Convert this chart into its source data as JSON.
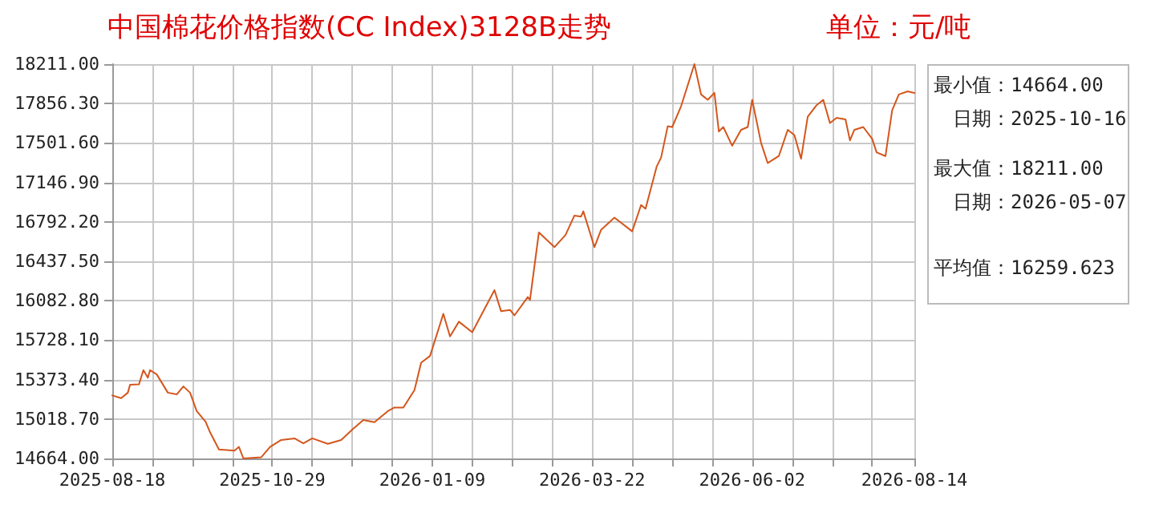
{
  "chart_data": {
    "type": "line",
    "title": "中国棉花价格指数(CC Index)3128B走势",
    "subtitle": "单位：元/吨",
    "annotations": [
      "最小值：14664.00",
      "日期：2025-10-16",
      "最大值：18211.00",
      "日期：2026-05-07",
      "平均值：16259.623"
    ],
    "x": [
      "2025-08-18",
      "2025-08-22",
      "2025-08-25",
      "2025-08-26",
      "2025-08-30",
      "2025-09-01",
      "2025-09-03",
      "2025-09-04",
      "2025-09-07",
      "2025-09-12",
      "2025-09-16",
      "2025-09-19",
      "2025-09-22",
      "2025-09-25",
      "2025-09-29",
      "2025-10-01",
      "2025-10-05",
      "2025-10-12",
      "2025-10-14",
      "2025-10-16",
      "2025-10-24",
      "2025-10-28",
      "2025-11-02",
      "2025-11-08",
      "2025-11-12",
      "2025-11-16",
      "2025-11-23",
      "2025-11-29",
      "2025-12-04",
      "2025-12-09",
      "2025-12-14",
      "2025-12-20",
      "2025-12-23",
      "2025-12-27",
      "2026-01-01",
      "2026-01-04",
      "2026-01-08",
      "2026-01-14",
      "2026-01-17",
      "2026-01-21",
      "2026-01-27",
      "2026-02-06",
      "2026-02-09",
      "2026-02-13",
      "2026-02-15",
      "2026-02-21",
      "2026-02-22",
      "2026-02-26",
      "2026-03-05",
      "2026-03-10",
      "2026-03-14",
      "2026-03-17",
      "2026-03-18",
      "2026-03-23",
      "2026-03-26",
      "2026-04-01",
      "2026-04-09",
      "2026-04-13",
      "2026-04-15",
      "2026-04-20",
      "2026-04-22",
      "2026-04-25",
      "2026-04-27",
      "2026-05-01",
      "2026-05-07",
      "2026-05-10",
      "2026-05-13",
      "2026-05-16",
      "2026-05-18",
      "2026-05-20",
      "2026-05-24",
      "2026-05-28",
      "2026-05-31",
      "2026-06-02",
      "2026-06-06",
      "2026-06-09",
      "2026-06-14",
      "2026-06-18",
      "2026-06-21",
      "2026-06-24",
      "2026-06-27",
      "2026-07-01",
      "2026-07-04",
      "2026-07-07",
      "2026-07-10",
      "2026-07-14",
      "2026-07-16",
      "2026-07-18",
      "2026-07-22",
      "2026-07-26",
      "2026-07-28",
      "2026-08-01",
      "2026-08-04",
      "2026-08-07",
      "2026-08-11",
      "2026-08-14"
    ],
    "series": [
      {
        "color": "#d4561c",
        "values": [
          15231,
          15207,
          15256,
          15327,
          15330,
          15459,
          15390,
          15459,
          15420,
          15256,
          15240,
          15312,
          15256,
          15090,
          14995,
          14900,
          14745,
          14735,
          14768,
          14664,
          14674,
          14768,
          14830,
          14845,
          14800,
          14845,
          14796,
          14830,
          14924,
          15010,
          14990,
          15090,
          15122,
          15122,
          15278,
          15525,
          15586,
          15965,
          15761,
          15894,
          15799,
          16178,
          15988,
          16000,
          15951,
          16116,
          16090,
          16697,
          16565,
          16675,
          16849,
          16840,
          16887,
          16565,
          16721,
          16830,
          16707,
          16944,
          16910,
          17289,
          17370,
          17653,
          17645,
          17832,
          18211,
          17938,
          17890,
          17952,
          17605,
          17645,
          17477,
          17620,
          17645,
          17890,
          17502,
          17321,
          17384,
          17620,
          17573,
          17360,
          17738,
          17842,
          17890,
          17681,
          17728,
          17714,
          17525,
          17620,
          17645,
          17540,
          17417,
          17384,
          17795,
          17938,
          17966,
          17952
        ]
      }
    ],
    "xlim": [
      "2025-08-18",
      "2026-08-14"
    ],
    "xticks": [
      "2025-08-18",
      {
        "value": "2025-09-05",
        "label": null
      },
      {
        "value": "2025-09-23",
        "label": null
      },
      {
        "value": "2025-10-11",
        "label": null
      },
      "2025-10-29",
      {
        "value": "2025-11-16",
        "label": null
      },
      {
        "value": "2025-12-04",
        "label": null
      },
      {
        "value": "2025-12-22",
        "label": null
      },
      "2026-01-09",
      {
        "value": "2026-01-27",
        "label": null
      },
      {
        "value": "2026-02-14",
        "label": null
      },
      {
        "value": "2026-03-04",
        "label": null
      },
      "2026-03-22",
      {
        "value": "2026-04-09",
        "label": null
      },
      {
        "value": "2026-04-27",
        "label": null
      },
      {
        "value": "2026-05-15",
        "label": null
      },
      "2026-06-02",
      {
        "value": "2026-06-20",
        "label": null
      },
      {
        "value": "2026-07-08",
        "label": null
      },
      {
        "value": "2026-07-26",
        "label": null
      },
      "2026-08-14"
    ],
    "ylim": [
      14664,
      18211
    ],
    "yticks": [
      {
        "value": 14664,
        "label": "14664.00"
      },
      {
        "value": 15018.7,
        "label": "15018.70"
      },
      {
        "value": 15373.4,
        "label": "15373.40"
      },
      {
        "value": 15728.1,
        "label": "15728.10"
      },
      {
        "value": 16082.8,
        "label": "16082.80"
      },
      {
        "value": 16437.5,
        "label": "16437.50"
      },
      {
        "value": 16792.2,
        "label": "16792.20"
      },
      {
        "value": 17146.9,
        "label": "17146.90"
      },
      {
        "value": 17501.6,
        "label": "17501.60"
      },
      {
        "value": 17856.3,
        "label": "17856.30"
      },
      {
        "value": 18211,
        "label": "18211.00"
      }
    ],
    "grid": true,
    "marker": "none",
    "line_style": "solid"
  }
}
